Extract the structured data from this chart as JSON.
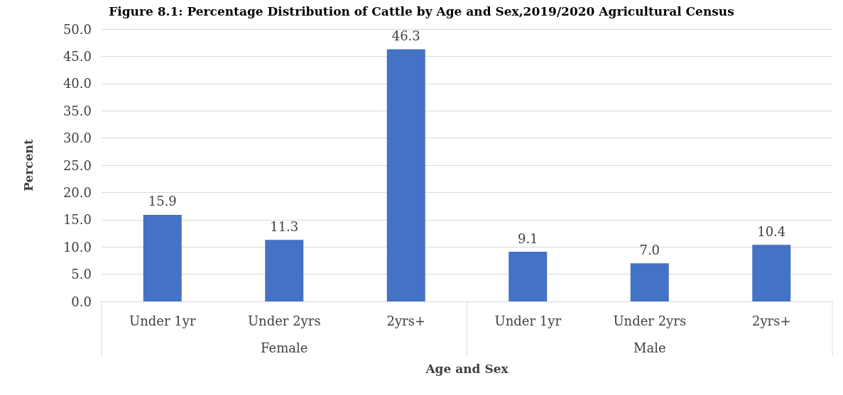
{
  "chart_data": {
    "type": "bar",
    "title": "Figure 8.1: Percentage Distribution of Cattle by Age and Sex,2019/2020 Agricultural Census",
    "categories": [
      "Under 1yr",
      "Under 2yrs",
      "2yrs+",
      "Under 1yr",
      "Under 2yrs",
      "2yrs+"
    ],
    "values": [
      15.9,
      11.3,
      46.3,
      9.1,
      7.0,
      10.4
    ],
    "value_labels": [
      "15.9",
      "11.3",
      "46.3",
      "9.1",
      "7.0",
      "10.4"
    ],
    "color": "#4472c4",
    "xlabel": "Age and Sex",
    "ylabel": "Percent",
    "annotations": [
      "Female",
      "Male"
    ],
    "ylim": [
      0,
      50
    ],
    "yticks": [
      {
        "value": 0,
        "label": "0.0"
      },
      {
        "value": 5,
        "label": "5.0"
      },
      {
        "value": 10,
        "label": "10.0"
      },
      {
        "value": 15,
        "label": "15.0"
      },
      {
        "value": 20,
        "label": "20.0"
      },
      {
        "value": 25,
        "label": "25.0"
      },
      {
        "value": 30,
        "label": "30.0"
      },
      {
        "value": 35,
        "label": "35.0"
      },
      {
        "value": 40,
        "label": "40.0"
      },
      {
        "value": 45,
        "label": "45.0"
      },
      {
        "value": 50,
        "label": "50.0"
      }
    ],
    "grid": "y"
  }
}
